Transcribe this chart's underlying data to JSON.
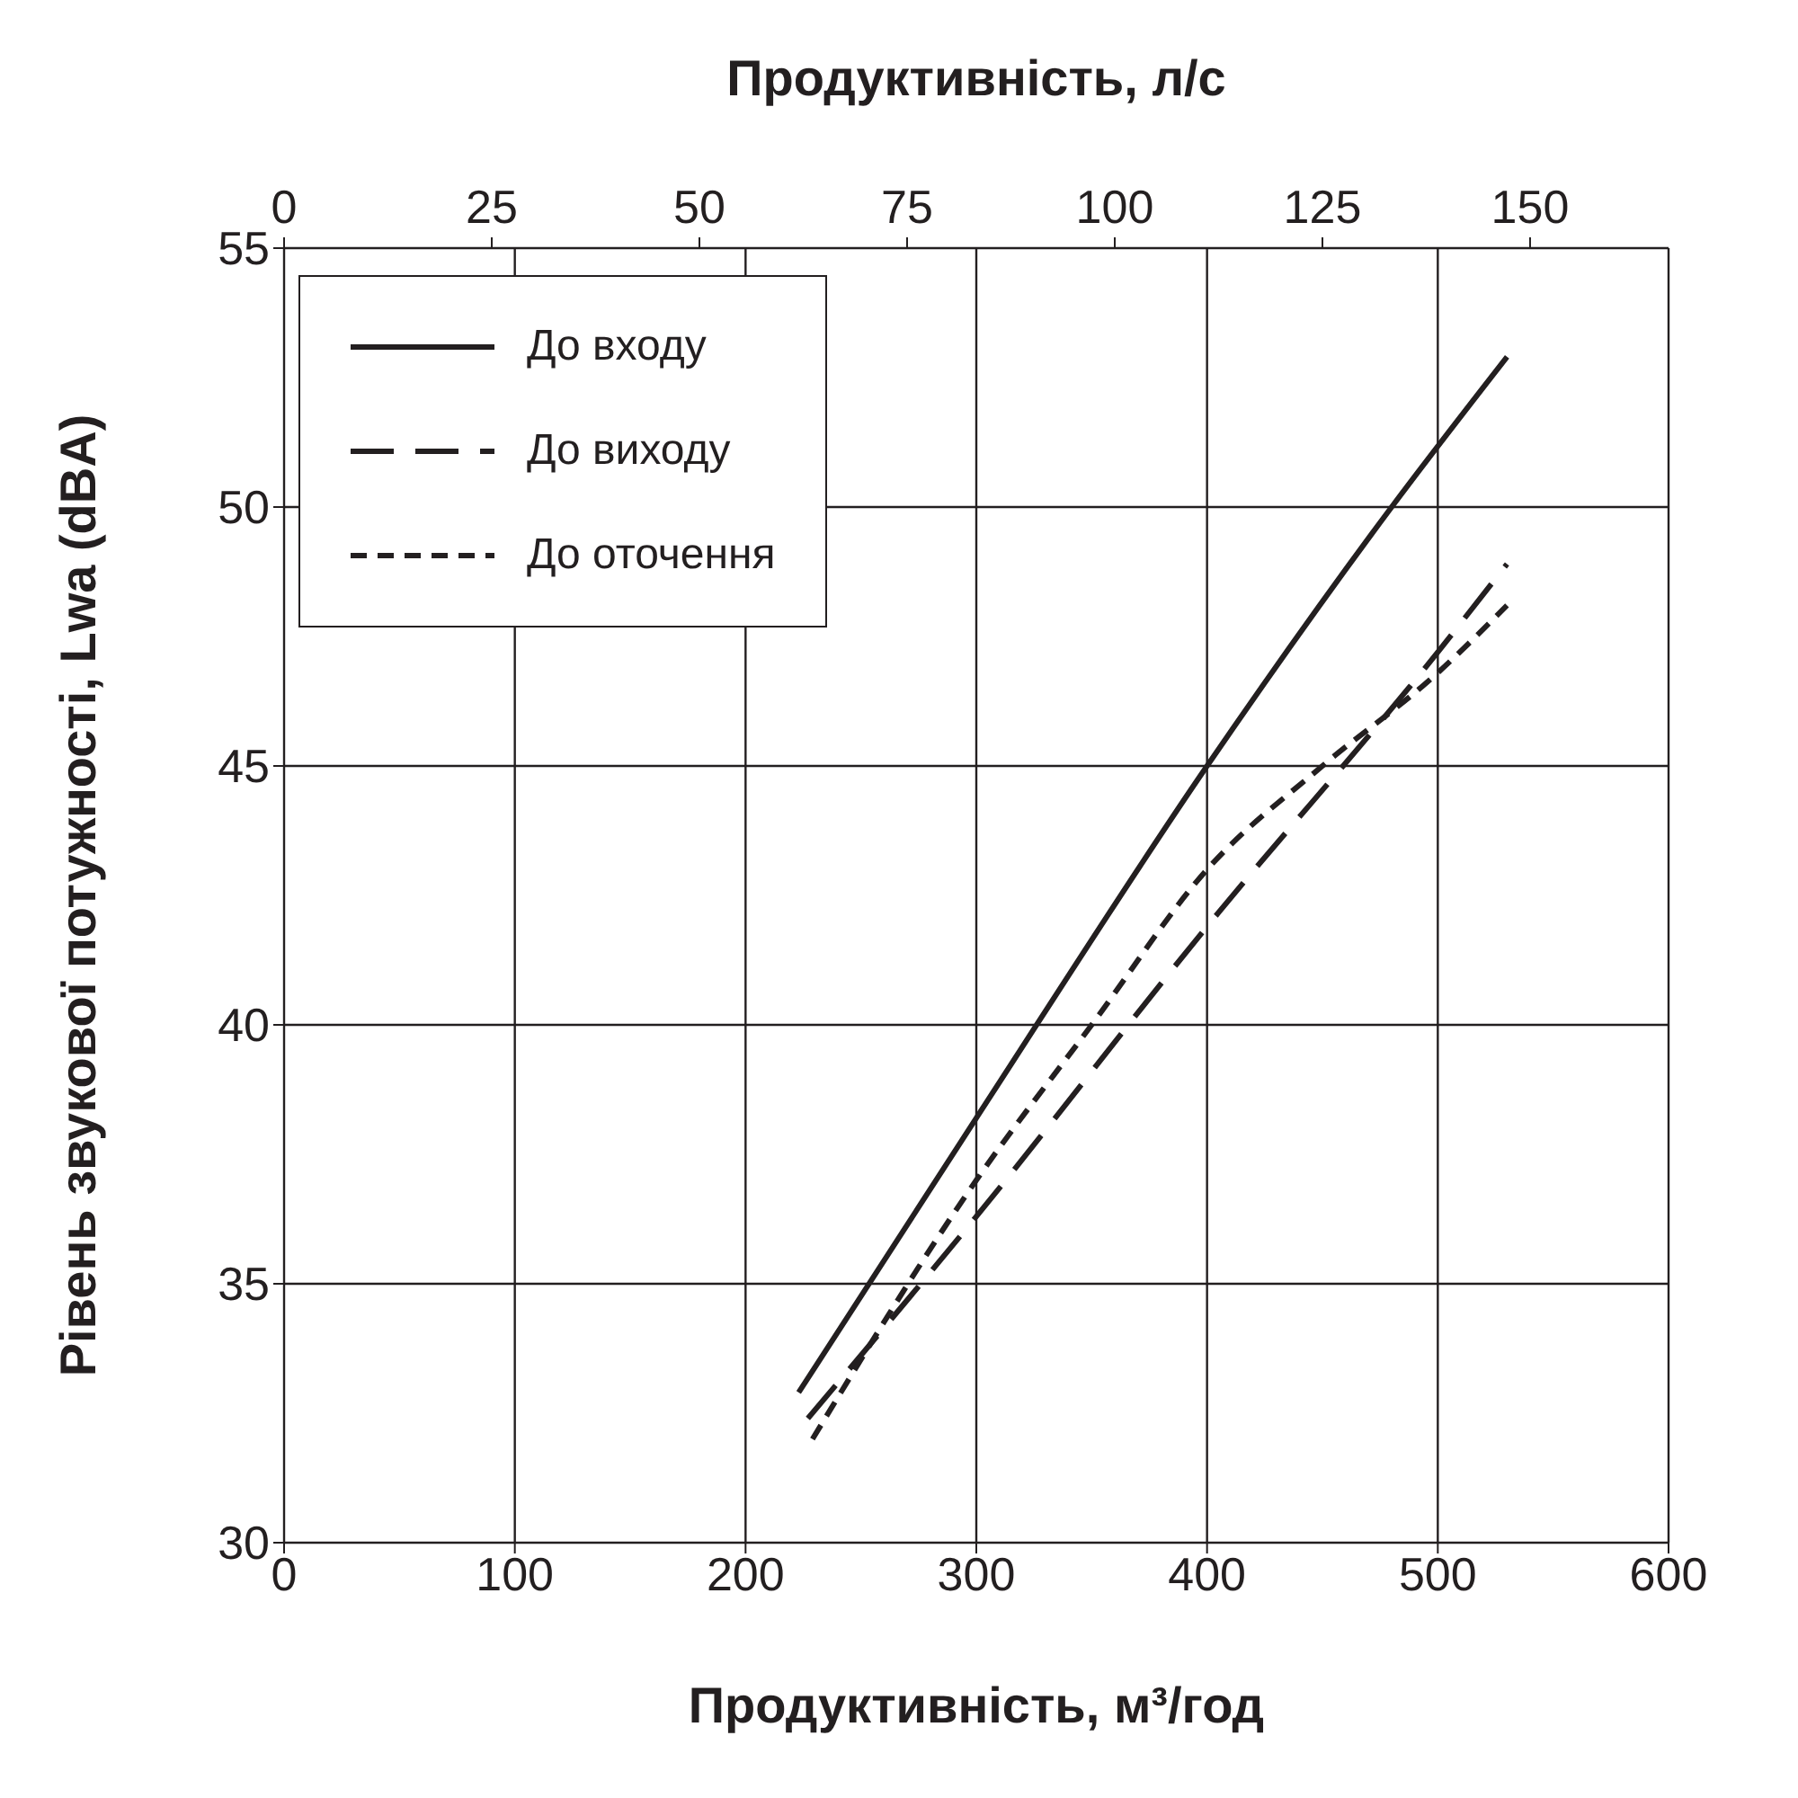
{
  "chart_data": {
    "type": "line",
    "xlabel": "Продуктивність, м³/год",
    "x2label": "Продуктивність, л/с",
    "ylabel": "Рівень звукової потужності, Lwa (dBA)",
    "xlim": [
      0,
      600
    ],
    "xticks": [
      0,
      100,
      200,
      300,
      400,
      500,
      600
    ],
    "x2lim": [
      0,
      166.67
    ],
    "x2ticks": [
      0,
      25,
      50,
      75,
      100,
      125,
      150
    ],
    "ylim": [
      30,
      55
    ],
    "yticks": [
      30,
      35,
      40,
      45,
      50,
      55
    ],
    "grid": true,
    "legend": "top left",
    "marker": "none",
    "series": [
      {
        "name": "До входу",
        "color": "#231f20",
        "line_style": "solid",
        "x": [
          223,
          300,
          400,
          480,
          530
        ],
        "values": [
          32.9,
          38.2,
          45.0,
          50.0,
          52.9
        ]
      },
      {
        "name": "До виходу",
        "color": "#231f20",
        "line_style": "dashed",
        "x": [
          227,
          300,
          400,
          500,
          530
        ],
        "values": [
          32.4,
          36.3,
          41.9,
          47.2,
          48.9
        ]
      },
      {
        "name": "До оточення",
        "color": "#231f20",
        "line_style": "dotted",
        "x": [
          229,
          300,
          350,
          400,
          450,
          500,
          530
        ],
        "values": [
          32.0,
          37.0,
          40.0,
          43.0,
          45.0,
          46.8,
          48.1
        ]
      }
    ]
  }
}
